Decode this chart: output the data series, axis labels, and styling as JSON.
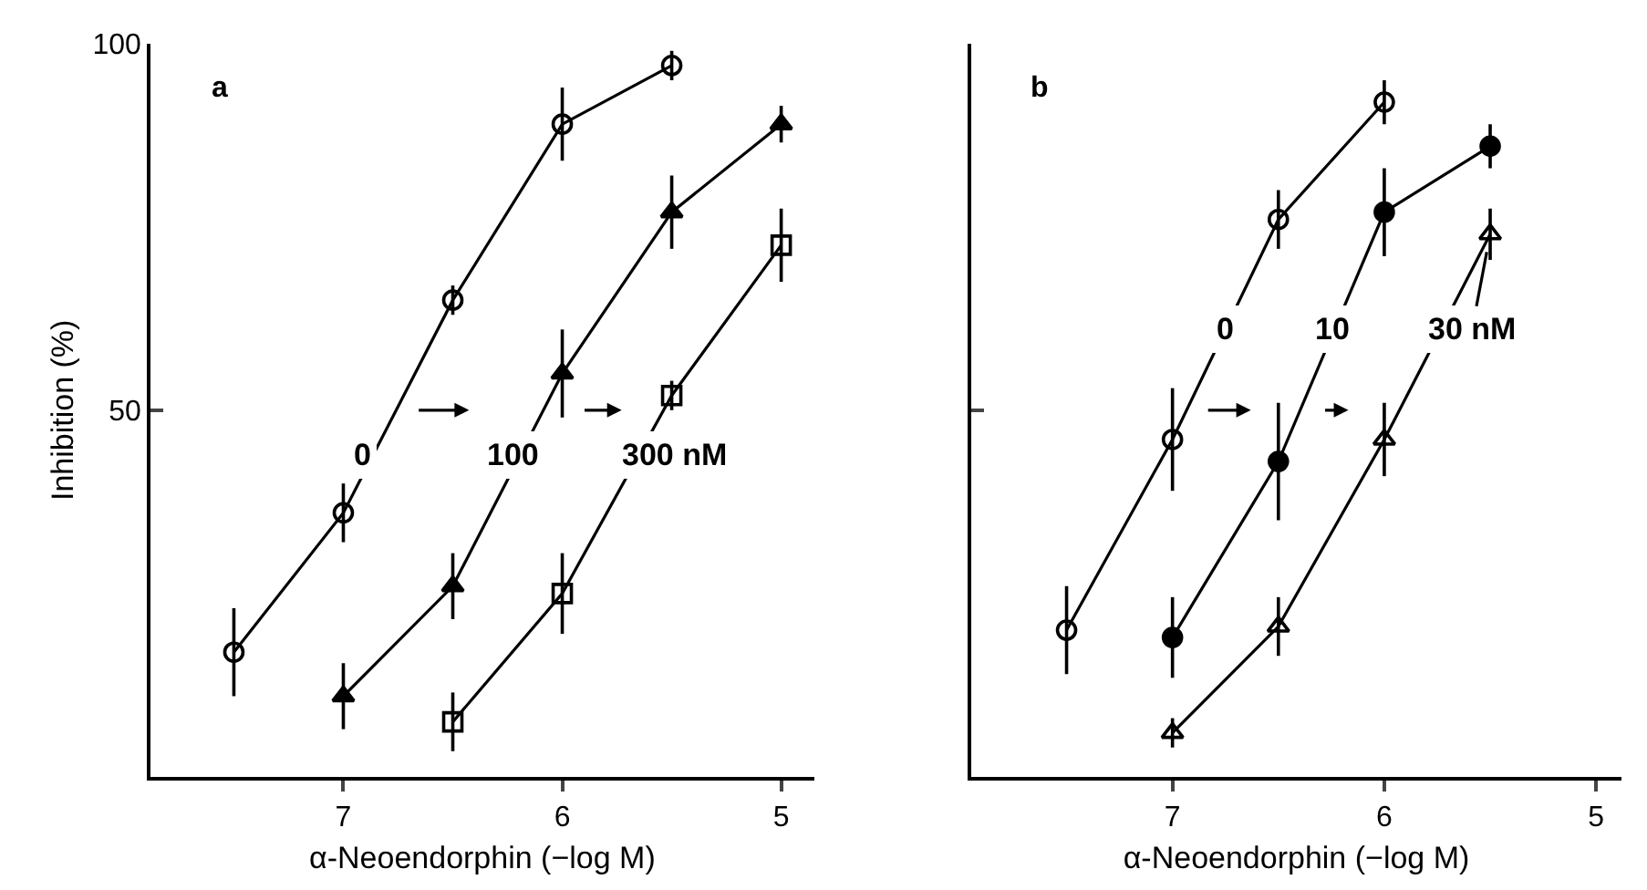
{
  "chart_data": [
    {
      "type": "line",
      "xlabel": "α-Neoendorphin (−log M)",
      "ylabel": "Inhibition (%)",
      "xlim": [
        7.88,
        4.85
      ],
      "ylim": [
        0,
        100
      ],
      "xticks": [
        7,
        6,
        5
      ],
      "yticks": [
        50,
        100
      ],
      "annotations": [
        "a",
        "0",
        "100",
        "300 nM"
      ],
      "series": [
        {
          "x": [
            7.5,
            7,
            6.5,
            6,
            5.5
          ],
          "values": [
            17,
            36,
            65,
            89,
            97
          ],
          "errors": [
            6,
            4,
            2,
            5,
            2
          ],
          "color": "#000000",
          "marker": "circle-open"
        },
        {
          "x": [
            7,
            6.5,
            6,
            5.5,
            5
          ],
          "values": [
            11,
            26,
            55,
            77,
            89
          ],
          "errors": [
            4.5,
            4.5,
            6,
            5,
            2.5
          ],
          "color": "#000000",
          "marker": "triangle"
        },
        {
          "x": [
            6.5,
            6,
            5.5,
            5
          ],
          "values": [
            7.5,
            25,
            52,
            72.5
          ],
          "errors": [
            4,
            5.5,
            2,
            5
          ],
          "color": "#000000",
          "marker": "square-open"
        }
      ]
    },
    {
      "type": "line",
      "xlabel": "α-Neoendorphin (−log M)",
      "xlim": [
        7.95,
        4.88
      ],
      "ylim": [
        0,
        100
      ],
      "xticks": [
        7,
        6,
        5
      ],
      "yticks": [
        {
          "value": 50,
          "label": null
        },
        {
          "value": 100,
          "label": null
        }
      ],
      "tick_labels": "x",
      "annotations": [
        "b",
        "0",
        "10",
        {
          "text": "30 nM",
          "x": 5.5,
          "y": 74
        }
      ],
      "series": [
        {
          "x": [
            7.5,
            7,
            6.5,
            6
          ],
          "values": [
            20,
            46,
            76,
            92
          ],
          "errors": [
            6,
            7,
            4,
            3
          ],
          "color": "#000000",
          "marker": "circle-open"
        },
        {
          "x": [
            7,
            6.5,
            6,
            5.5
          ],
          "values": [
            19,
            43,
            77,
            86
          ],
          "errors": [
            5.5,
            8,
            6,
            3
          ],
          "color": "#000000",
          "marker": "circle"
        },
        {
          "x": [
            7,
            6.5,
            6,
            5.5
          ],
          "values": [
            6,
            20.5,
            46,
            74
          ],
          "errors": [
            2,
            4,
            5,
            3.5
          ],
          "color": "#000000",
          "marker": "triangle-open"
        }
      ]
    }
  ]
}
